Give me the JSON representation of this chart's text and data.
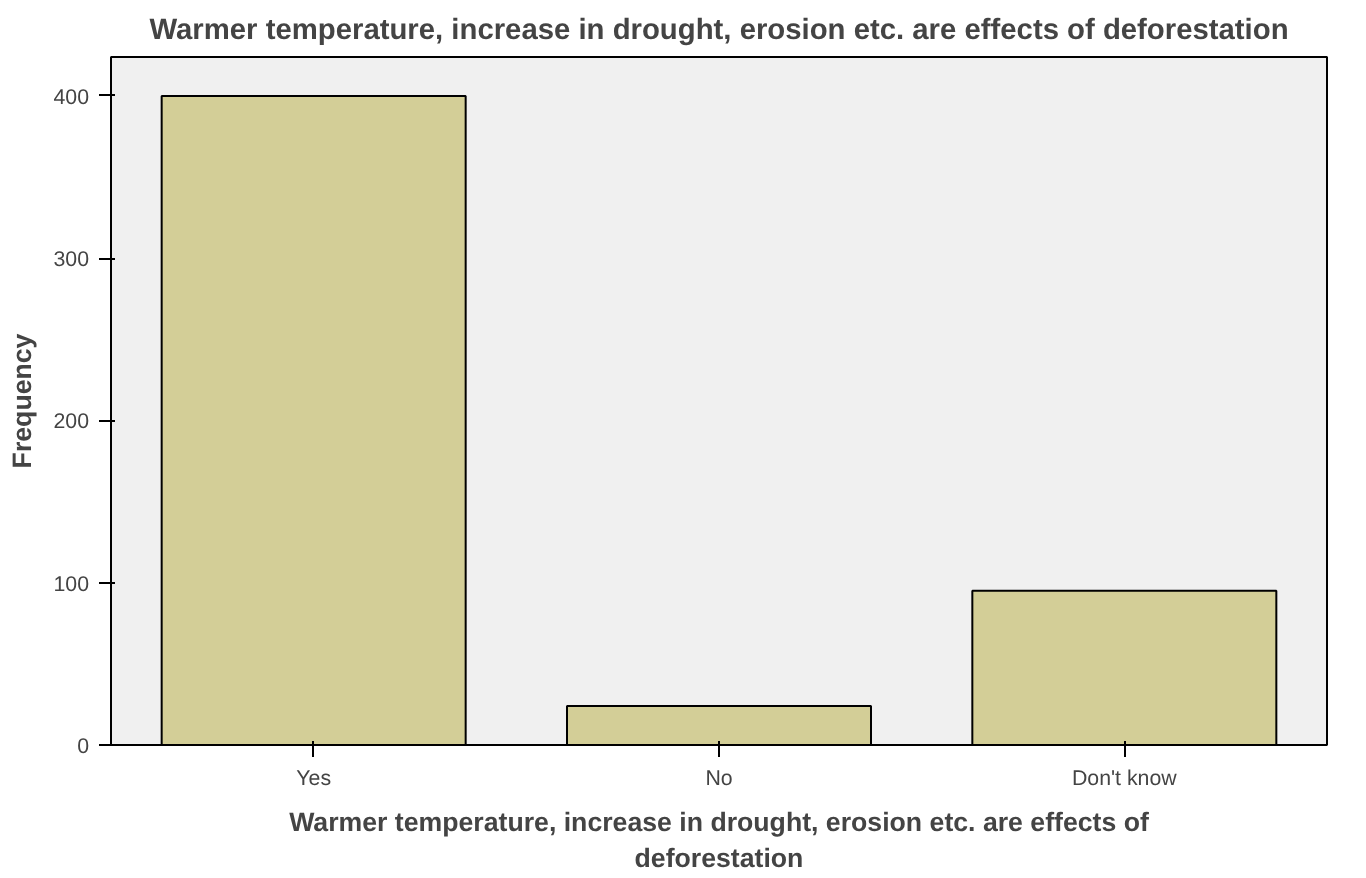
{
  "chart_data": {
    "type": "bar",
    "title": "Warmer temperature, increase in drought, erosion etc. are effects of deforestation",
    "xlabel": "Warmer temperature, increase in drought, erosion etc. are effects of\ndeforestation",
    "ylabel": "Frequency",
    "categories": [
      "Yes",
      "No",
      "Don't know"
    ],
    "values": [
      400,
      24,
      95
    ],
    "color": "#d3ce97",
    "ylim": [
      0,
      424
    ],
    "yticks": [
      0,
      100,
      200,
      300,
      400
    ],
    "grid": false
  }
}
